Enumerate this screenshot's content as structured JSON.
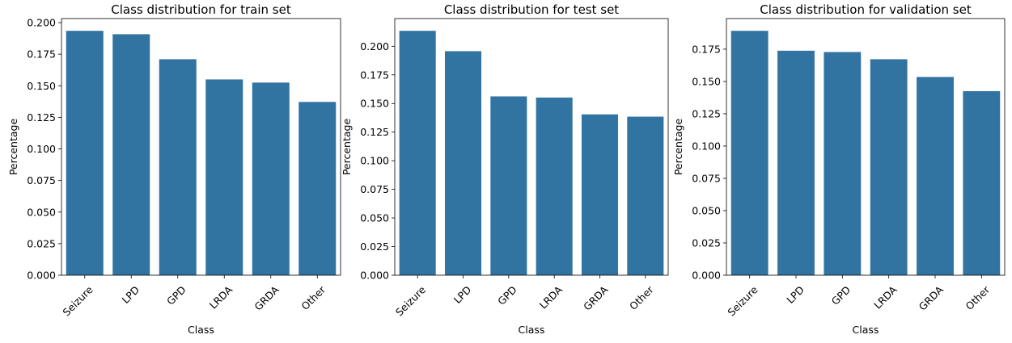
{
  "chart_data": [
    {
      "type": "bar",
      "title": "Class distribution for train set",
      "xlabel": "Class",
      "ylabel": "Percentage",
      "categories": [
        "Seizure",
        "LPD",
        "GPD",
        "LRDA",
        "GRDA",
        "Other"
      ],
      "values": [
        0.1935,
        0.1908,
        0.171,
        0.155,
        0.1525,
        0.1372
      ],
      "ylim": [
        0,
        0.2032
      ],
      "yticks": [
        "0.000",
        "0.025",
        "0.050",
        "0.075",
        "0.100",
        "0.125",
        "0.150",
        "0.175",
        "0.200"
      ],
      "ytick_values": [
        0,
        0.025,
        0.05,
        0.075,
        0.1,
        0.125,
        0.15,
        0.175,
        0.2
      ],
      "color": "#3274a1",
      "grid": false,
      "legend": "none"
    },
    {
      "type": "bar",
      "title": "Class distribution for test set",
      "xlabel": "Class",
      "ylabel": "Percentage",
      "categories": [
        "Seizure",
        "LPD",
        "GPD",
        "LRDA",
        "GRDA",
        "Other"
      ],
      "values": [
        0.2135,
        0.1957,
        0.1562,
        0.1552,
        0.1405,
        0.1385
      ],
      "ylim": [
        0,
        0.2242
      ],
      "yticks": [
        "0.000",
        "0.025",
        "0.050",
        "0.075",
        "0.100",
        "0.125",
        "0.150",
        "0.175",
        "0.200"
      ],
      "ytick_values": [
        0,
        0.025,
        0.05,
        0.075,
        0.1,
        0.125,
        0.15,
        0.175,
        0.2
      ],
      "color": "#3274a1",
      "grid": false,
      "legend": "none"
    },
    {
      "type": "bar",
      "title": "Class distribution for validation set",
      "xlabel": "Class",
      "ylabel": "Percentage",
      "categories": [
        "Seizure",
        "LPD",
        "GPD",
        "LRDA",
        "GRDA",
        "Other"
      ],
      "values": [
        0.1892,
        0.1738,
        0.1728,
        0.1672,
        0.1535,
        0.1425
      ],
      "ylim": [
        0,
        0.1987
      ],
      "yticks": [
        "0.000",
        "0.025",
        "0.050",
        "0.075",
        "0.100",
        "0.125",
        "0.150",
        "0.175"
      ],
      "ytick_values": [
        0,
        0.025,
        0.05,
        0.075,
        0.1,
        0.125,
        0.15,
        0.175
      ],
      "color": "#3274a1",
      "grid": false,
      "legend": "none"
    }
  ]
}
